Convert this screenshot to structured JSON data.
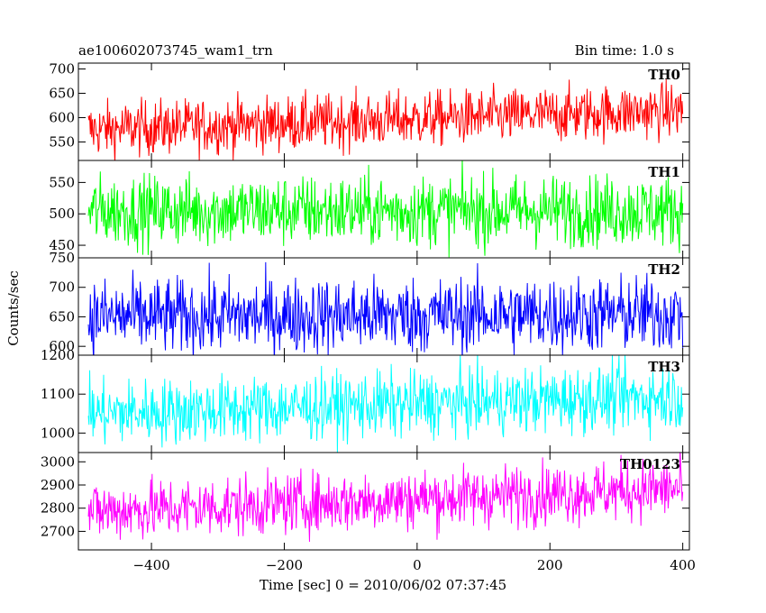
{
  "header": {
    "title": "ae100602073745_wam1_trn",
    "bin_time": "Bin time: 1.0 s"
  },
  "chart_data": {
    "type": "line",
    "xlabel": "Time [sec] 0 = 2010/06/02 07:37:45",
    "ylabel": "Counts/sec",
    "xlim": [
      -510,
      410
    ],
    "x_range": [
      -495,
      400
    ],
    "x_step": 1,
    "xticks": [
      -400,
      -200,
      0,
      200,
      400
    ],
    "xtick_labels": [
      "−400",
      "−200",
      "0",
      "200",
      "400"
    ],
    "panels": [
      {
        "name": "TH0",
        "color": "#ff0000",
        "ylim": [
          512,
          712
        ],
        "yticks": [
          550,
          600,
          650,
          700
        ],
        "mean_start": 575,
        "mean_end": 615,
        "noise": 28
      },
      {
        "name": "TH1",
        "color": "#00ff00",
        "ylim": [
          430,
          585
        ],
        "yticks": [
          450,
          500,
          550
        ],
        "mean_start": 505,
        "mean_end": 505,
        "noise": 28
      },
      {
        "name": "TH2",
        "color": "#0000ff",
        "ylim": [
          585,
          750
        ],
        "yticks": [
          600,
          650,
          700,
          750
        ],
        "mean_start": 650,
        "mean_end": 655,
        "noise": 32
      },
      {
        "name": "TH3",
        "color": "#00ffff",
        "ylim": [
          950,
          1200
        ],
        "yticks": [
          1000,
          1100,
          1200
        ],
        "mean_start": 1050,
        "mean_end": 1095,
        "noise": 42
      },
      {
        "name": "TH0123",
        "color": "#ff00ff",
        "ylim": [
          2620,
          3040
        ],
        "yticks": [
          2700,
          2800,
          2900,
          3000
        ],
        "mean_start": 2785,
        "mean_end": 2885,
        "noise": 65
      }
    ]
  }
}
